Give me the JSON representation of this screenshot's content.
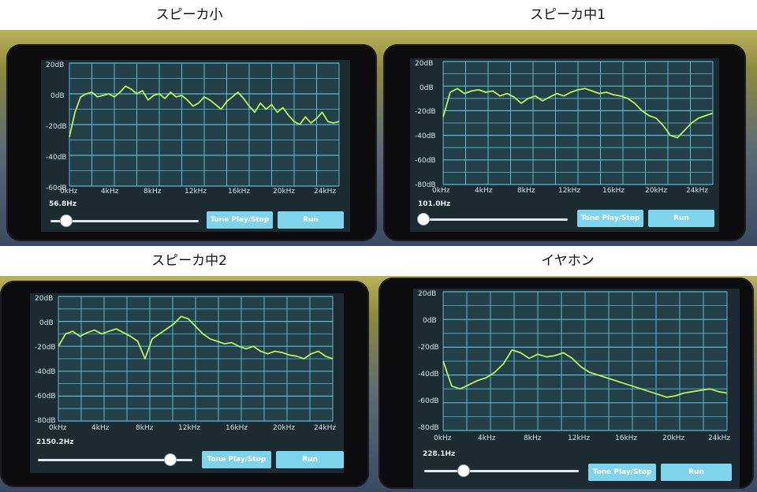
{
  "panels": [
    {
      "caption": "スピーカ小",
      "y_labels": [
        "20dB",
        "0dB",
        "-20dB",
        "-40dB",
        "-60dB"
      ],
      "x_labels": [
        "0kHz",
        "4kHz",
        "8kHz",
        "12kHz",
        "16kHz",
        "20kHz",
        "24kHz"
      ],
      "freq_text": "56.8Hz",
      "slider_value": 0.1,
      "play_button": "Tone Play/Stop",
      "run_button": "Run",
      "curve_db": [
        -28,
        -12,
        -2,
        0,
        1,
        -2,
        -1,
        0,
        -2,
        1,
        5,
        3,
        0,
        2,
        -4,
        -1,
        0,
        -3,
        1,
        -2,
        -1,
        -4,
        -8,
        -6,
        -2,
        -4,
        -7,
        -10,
        -5,
        -2,
        1,
        -3,
        -8,
        -12,
        -6,
        -10,
        -7,
        -12,
        -9,
        -14,
        -18,
        -20,
        -15,
        -19,
        -16,
        -12,
        -18,
        -19,
        -18
      ]
    },
    {
      "caption": "スピーカ中1",
      "y_labels": [
        "20dB",
        "0dB",
        "-20dB",
        "-40dB",
        "-60dB",
        "-80dB"
      ],
      "x_labels": [
        "0kHz",
        "4kHz",
        "8kHz",
        "12kHz",
        "16kHz",
        "20kHz",
        "24kHz"
      ],
      "freq_text": "101.0Hz",
      "slider_value": 0.02,
      "play_button": "Tone Play/Stop",
      "run_button": "Run",
      "curve_db": [
        -25,
        -5,
        -2,
        -6,
        -4,
        -3,
        -5,
        -4,
        -8,
        -6,
        -9,
        -14,
        -10,
        -8,
        -12,
        -9,
        -6,
        -8,
        -5,
        -3,
        -2,
        -4,
        -6,
        -5,
        -7,
        -8,
        -10,
        -14,
        -20,
        -24,
        -26,
        -32,
        -40,
        -42,
        -36,
        -30,
        -26,
        -24,
        -22
      ]
    },
    {
      "caption": "スピーカ中2",
      "y_labels": [
        "20dB",
        "0dB",
        "-20dB",
        "-40dB",
        "-60dB",
        "-80dB"
      ],
      "x_labels": [
        "0kHz",
        "4kHz",
        "8kHz",
        "12kHz",
        "16kHz",
        "20kHz",
        "24kHz"
      ],
      "freq_text": "2150.2Hz",
      "slider_value": 0.85,
      "play_button": "Tone Play/Stop",
      "run_button": "Run",
      "curve_db": [
        -20,
        -10,
        -8,
        -12,
        -9,
        -7,
        -10,
        -8,
        -6,
        -9,
        -12,
        -16,
        -30,
        -14,
        -10,
        -6,
        -2,
        4,
        2,
        -4,
        -10,
        -14,
        -16,
        -18,
        -17,
        -20,
        -22,
        -20,
        -24,
        -26,
        -24,
        -25,
        -27,
        -28,
        -30,
        -26,
        -24,
        -28,
        -30
      ]
    },
    {
      "caption": "イヤホン",
      "y_labels": [
        "20dB",
        "0dB",
        "-20dB",
        "-40dB",
        "-60dB",
        "-80dB"
      ],
      "x_labels": [
        "0kHz",
        "4kHz",
        "8kHz",
        "12kHz",
        "16kHz",
        "20kHz",
        "24kHz"
      ],
      "freq_text": "228.1Hz",
      "slider_value": 0.25,
      "play_button": "Tone Play/Stop",
      "run_button": "Run",
      "curve_db": [
        -30,
        -48,
        -50,
        -47,
        -44,
        -42,
        -38,
        -32,
        -22,
        -24,
        -28,
        -25,
        -27,
        -26,
        -24,
        -28,
        -34,
        -38,
        -40,
        -42,
        -44,
        -46,
        -48,
        -50,
        -52,
        -54,
        -56,
        -55,
        -53,
        -52,
        -51,
        -50,
        -52,
        -53
      ]
    }
  ]
}
